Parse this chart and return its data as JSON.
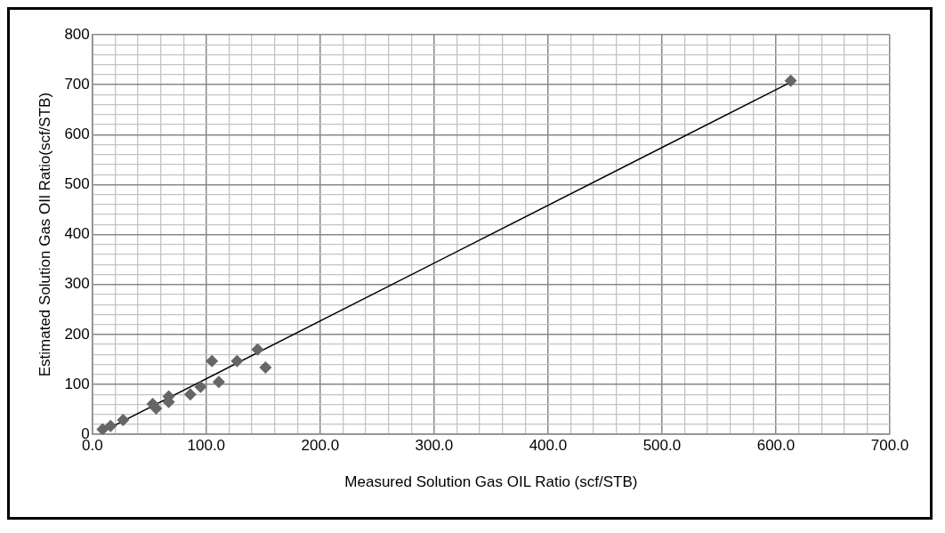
{
  "chart_data": {
    "type": "scatter",
    "xlabel": "Measured Solution Gas OIL Ratio (scf/STB)",
    "ylabel": "Estimated Solution Gas OIl Ratio(scf/STB)",
    "xlim": [
      0,
      700
    ],
    "ylim": [
      0,
      800
    ],
    "xticks": [
      {
        "value": 0,
        "label": "0.0"
      },
      {
        "value": 20,
        "label": null
      },
      {
        "value": 40,
        "label": null
      },
      {
        "value": 60,
        "label": null
      },
      {
        "value": 80,
        "label": null
      },
      {
        "value": 100,
        "label": "100.0"
      },
      {
        "value": 120,
        "label": null
      },
      {
        "value": 140,
        "label": null
      },
      {
        "value": 160,
        "label": null
      },
      {
        "value": 180,
        "label": null
      },
      {
        "value": 200,
        "label": "200.0"
      },
      {
        "value": 220,
        "label": null
      },
      {
        "value": 240,
        "label": null
      },
      {
        "value": 260,
        "label": null
      },
      {
        "value": 280,
        "label": null
      },
      {
        "value": 300,
        "label": "300.0"
      },
      {
        "value": 320,
        "label": null
      },
      {
        "value": 340,
        "label": null
      },
      {
        "value": 360,
        "label": null
      },
      {
        "value": 380,
        "label": null
      },
      {
        "value": 400,
        "label": "400.0"
      },
      {
        "value": 420,
        "label": null
      },
      {
        "value": 440,
        "label": null
      },
      {
        "value": 460,
        "label": null
      },
      {
        "value": 480,
        "label": null
      },
      {
        "value": 500,
        "label": "500.0"
      },
      {
        "value": 520,
        "label": null
      },
      {
        "value": 540,
        "label": null
      },
      {
        "value": 560,
        "label": null
      },
      {
        "value": 580,
        "label": null
      },
      {
        "value": 600,
        "label": "600.0"
      },
      {
        "value": 620,
        "label": null
      },
      {
        "value": 640,
        "label": null
      },
      {
        "value": 660,
        "label": null
      },
      {
        "value": 680,
        "label": null
      },
      {
        "value": 700,
        "label": "700.0"
      }
    ],
    "yticks": [
      0,
      {
        "value": 20,
        "label": null
      },
      {
        "value": 40,
        "label": null
      },
      {
        "value": 60,
        "label": null
      },
      {
        "value": 80,
        "label": null
      },
      100,
      {
        "value": 120,
        "label": null
      },
      {
        "value": 140,
        "label": null
      },
      {
        "value": 160,
        "label": null
      },
      {
        "value": 180,
        "label": null
      },
      200,
      {
        "value": 220,
        "label": null
      },
      {
        "value": 240,
        "label": null
      },
      {
        "value": 260,
        "label": null
      },
      {
        "value": 280,
        "label": null
      },
      300,
      {
        "value": 320,
        "label": null
      },
      {
        "value": 340,
        "label": null
      },
      {
        "value": 360,
        "label": null
      },
      {
        "value": 380,
        "label": null
      },
      400,
      {
        "value": 420,
        "label": null
      },
      {
        "value": 440,
        "label": null
      },
      {
        "value": 460,
        "label": null
      },
      {
        "value": 480,
        "label": null
      },
      500,
      {
        "value": 520,
        "label": null
      },
      {
        "value": 540,
        "label": null
      },
      {
        "value": 560,
        "label": null
      },
      {
        "value": 580,
        "label": null
      },
      600,
      {
        "value": 620,
        "label": null
      },
      {
        "value": 640,
        "label": null
      },
      {
        "value": 660,
        "label": null
      },
      {
        "value": 680,
        "label": null
      },
      700,
      {
        "value": 720,
        "label": null
      },
      {
        "value": 740,
        "label": null
      },
      {
        "value": 760,
        "label": null
      },
      {
        "value": 780,
        "label": null
      },
      800
    ],
    "grid": true,
    "legend": false,
    "marker": "diamond",
    "series": [
      {
        "color": "#666666",
        "x": [
          9,
          16,
          27,
          53,
          56,
          67,
          67,
          86,
          95,
          105,
          111,
          127,
          145,
          152,
          613
        ],
        "values": [
          10,
          17,
          29,
          61,
          52,
          76,
          65,
          80,
          95,
          147,
          105,
          147,
          170,
          134,
          708
        ]
      },
      {
        "type": "line",
        "color": "#000000",
        "marker": "none",
        "x": [
          9,
          613
        ],
        "values": [
          6,
          705
        ]
      }
    ]
  }
}
